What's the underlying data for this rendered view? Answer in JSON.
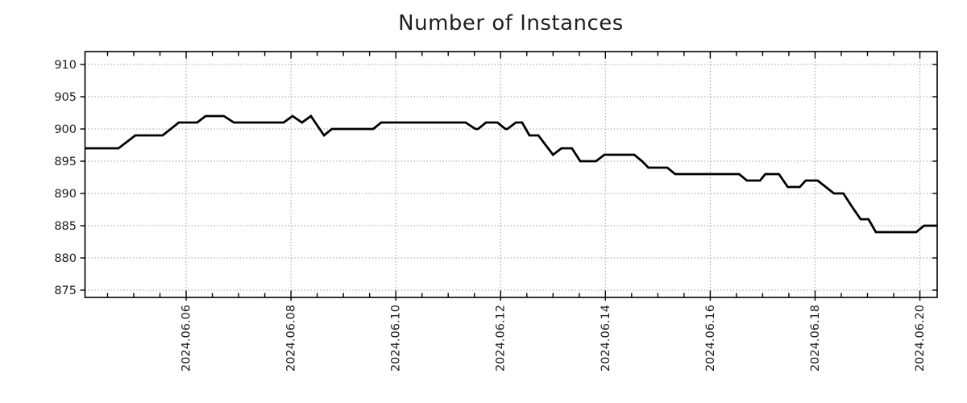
{
  "chart_data": {
    "type": "line",
    "title": "Number of Instances",
    "legend": "none",
    "grid": {
      "visible": true,
      "style": "dotted",
      "color": "#9e9e9e"
    },
    "line": {
      "color": "#000000",
      "width": 2.8
    },
    "x_axis": {
      "unit": "date (day of June 2024)",
      "range_days": [
        4.07,
        20.33
      ],
      "major_tick_days": [
        6,
        8,
        10,
        12,
        14,
        16,
        18,
        20
      ],
      "tick_labels": [
        "2024.06.06",
        "2024.06.08",
        "2024.06.10",
        "2024.06.12",
        "2024.06.14",
        "2024.06.16",
        "2024.06.18",
        "2024.06.20"
      ],
      "minor_tick_step_days": 0.5
    },
    "y_axis": {
      "range": [
        873.875,
        912.0
      ],
      "ticks": [
        875,
        880,
        885,
        890,
        895,
        900,
        905,
        910
      ],
      "tick_labels": [
        "875",
        "880",
        "885",
        "890",
        "895",
        "900",
        "905",
        "910"
      ]
    },
    "series": [
      {
        "name": "instances",
        "color": "#000000",
        "points": [
          [
            4.07,
            897
          ],
          [
            4.71,
            897
          ],
          [
            5.03,
            899
          ],
          [
            5.55,
            899
          ],
          [
            5.86,
            901
          ],
          [
            6.21,
            901
          ],
          [
            6.37,
            902
          ],
          [
            6.72,
            902
          ],
          [
            6.91,
            901
          ],
          [
            7.86,
            901
          ],
          [
            8.03,
            902
          ],
          [
            8.21,
            901
          ],
          [
            8.38,
            902
          ],
          [
            8.63,
            899
          ],
          [
            8.78,
            900
          ],
          [
            9.57,
            900
          ],
          [
            9.72,
            901
          ],
          [
            11.33,
            901
          ],
          [
            11.52,
            900
          ],
          [
            11.57,
            900
          ],
          [
            11.72,
            901
          ],
          [
            11.94,
            901
          ],
          [
            12.09,
            900
          ],
          [
            12.13,
            900
          ],
          [
            12.29,
            901
          ],
          [
            12.41,
            901
          ],
          [
            12.55,
            899
          ],
          [
            12.72,
            899
          ],
          [
            13.0,
            896
          ],
          [
            13.16,
            897
          ],
          [
            13.36,
            897
          ],
          [
            13.52,
            895
          ],
          [
            13.82,
            895
          ],
          [
            13.98,
            896
          ],
          [
            14.55,
            896
          ],
          [
            14.7,
            895
          ],
          [
            14.82,
            894
          ],
          [
            15.18,
            894
          ],
          [
            15.33,
            893
          ],
          [
            16.55,
            893
          ],
          [
            16.7,
            892
          ],
          [
            16.95,
            892
          ],
          [
            17.05,
            893
          ],
          [
            17.31,
            893
          ],
          [
            17.48,
            891
          ],
          [
            17.71,
            891
          ],
          [
            17.82,
            892
          ],
          [
            18.05,
            892
          ],
          [
            18.36,
            890
          ],
          [
            18.54,
            890
          ],
          [
            18.7,
            888
          ],
          [
            18.87,
            886
          ],
          [
            19.02,
            886
          ],
          [
            19.16,
            884
          ],
          [
            19.93,
            884
          ],
          [
            20.08,
            885
          ],
          [
            20.33,
            885
          ]
        ]
      }
    ]
  }
}
